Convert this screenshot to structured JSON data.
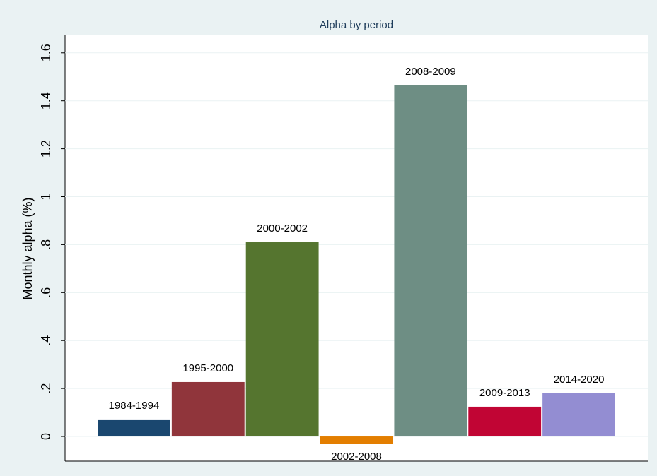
{
  "chart_data": {
    "type": "bar",
    "title": "Alpha by period",
    "y_label": "Monthly alpha (%)",
    "categories": [
      "1984-1994",
      "1995-2000",
      "2000-2002",
      "2002-2008",
      "2008-2009",
      "2009-2013",
      "2014-2020"
    ],
    "values": [
      0.071,
      0.227,
      0.81,
      -0.03,
      1.464,
      0.124,
      0.18
    ],
    "colors": [
      "#1a476f",
      "#90353b",
      "#55752f",
      "#e37e00",
      "#6e8e84",
      "#c10534",
      "#938dd2"
    ],
    "ylim": [
      -0.103,
      1.673
    ],
    "yticks": [
      0,
      {
        "value": 0.2,
        "label": ".2"
      },
      {
        "value": 0.4,
        "label": ".4"
      },
      {
        "value": 0.6,
        "label": ".6"
      },
      {
        "value": 0.8,
        "label": ".8"
      },
      1,
      1.2,
      1.4,
      1.6
    ],
    "grid": true
  }
}
